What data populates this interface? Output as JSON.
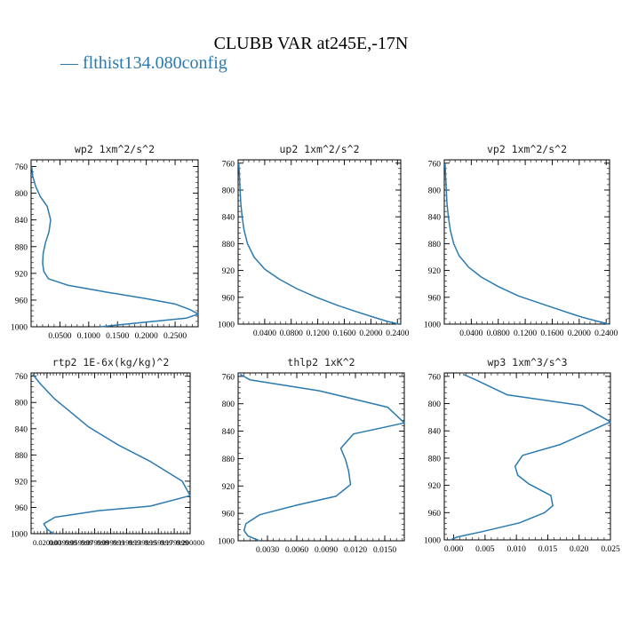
{
  "figure": {
    "title": "CLUBB VAR at245E,-17N",
    "legend_label": "— flthist134.080config",
    "line_color": "#2a7ab0"
  },
  "chart_data": [
    {
      "type": "line",
      "title": "wp2   1xm^2/s^2",
      "xlim": [
        0.0,
        0.29
      ],
      "ylim": [
        1000,
        750
      ],
      "xticks": [
        0.05,
        0.1,
        0.15,
        0.2,
        0.25
      ],
      "xtick_labels": [
        "0.0500",
        "0.1000",
        "0.1500",
        "0.2000",
        "0.2500"
      ],
      "yticks": [
        760,
        800,
        840,
        880,
        920,
        960,
        1000
      ],
      "ytick_labels": [
        "760",
        "800",
        "840",
        "880",
        "920",
        "960",
        "1000"
      ],
      "series": [
        {
          "x": [
            0.001,
            0.003,
            0.008,
            0.016,
            0.028,
            0.034,
            0.031,
            0.025,
            0.021,
            0.02,
            0.022,
            0.03,
            0.065,
            0.13,
            0.2,
            0.25,
            0.275,
            0.29,
            0.27,
            0.2,
            0.12
          ],
          "y": [
            760,
            775,
            790,
            805,
            820,
            840,
            858,
            874,
            890,
            905,
            917,
            928,
            938,
            948,
            958,
            966,
            974,
            981,
            987,
            993,
            1000
          ]
        }
      ]
    },
    {
      "type": "line",
      "title": "up2   1xm^2/s^2",
      "xlim": [
        0.0,
        0.245
      ],
      "ylim": [
        1000,
        755
      ],
      "xticks": [
        0.04,
        0.08,
        0.12,
        0.16,
        0.2,
        0.24
      ],
      "xtick_labels": [
        "0.0400",
        "0.0800",
        "0.1200",
        "0.1600",
        "0.2000",
        "0.2400"
      ],
      "yticks": [
        760,
        800,
        840,
        880,
        920,
        960,
        1000
      ],
      "ytick_labels": [
        "760",
        "800",
        "840",
        "880",
        "920",
        "960",
        "1000"
      ],
      "series": [
        {
          "x": [
            0.001,
            0.002,
            0.003,
            0.004,
            0.006,
            0.009,
            0.014,
            0.024,
            0.04,
            0.062,
            0.088,
            0.118,
            0.15,
            0.18,
            0.205,
            0.225,
            0.242
          ],
          "y": [
            760,
            780,
            800,
            820,
            840,
            860,
            880,
            900,
            918,
            933,
            947,
            960,
            972,
            982,
            990,
            996,
            1000
          ]
        }
      ]
    },
    {
      "type": "line",
      "title": "vp2   1xm^2/s^2",
      "xlim": [
        0.0,
        0.245
      ],
      "ylim": [
        1000,
        755
      ],
      "xticks": [
        0.04,
        0.08,
        0.12,
        0.16,
        0.2,
        0.24
      ],
      "xtick_labels": [
        "0.0400",
        "0.0800",
        "0.1200",
        "0.1600",
        "0.2000",
        "0.2400"
      ],
      "yticks": [
        760,
        800,
        840,
        880,
        920,
        960,
        1000
      ],
      "ytick_labels": [
        "760",
        "800",
        "840",
        "880",
        "920",
        "960",
        "1000"
      ],
      "series": [
        {
          "x": [
            0.001,
            0.002,
            0.003,
            0.004,
            0.006,
            0.009,
            0.014,
            0.022,
            0.036,
            0.055,
            0.08,
            0.11,
            0.145,
            0.178,
            0.205,
            0.228,
            0.244
          ],
          "y": [
            760,
            780,
            800,
            820,
            840,
            860,
            880,
            898,
            915,
            930,
            944,
            958,
            970,
            981,
            990,
            996,
            1000
          ]
        }
      ]
    },
    {
      "type": "line",
      "title": "rtp2   1E-6x(kg/kg)^2",
      "xlim": [
        0.0,
        0.2
      ],
      "ylim": [
        1000,
        755
      ],
      "xticks": [
        0.02,
        0.04,
        0.06,
        0.08,
        0.1,
        0.12,
        0.14,
        0.16,
        0.18,
        0.2
      ],
      "xtick_labels": [
        "0.020000",
        "0.039999",
        "0.059999",
        "0.079999",
        "0.099999",
        "0.119999",
        "0.139999",
        "0.159999",
        "0.179999",
        "0.200000"
      ],
      "yticks": [
        760,
        800,
        840,
        880,
        920,
        960,
        1000
      ],
      "ytick_labels": [
        "760",
        "800",
        "840",
        "880",
        "920",
        "960",
        "1000"
      ],
      "series": [
        {
          "x": [
            0.002,
            0.012,
            0.03,
            0.05,
            0.072,
            0.11,
            0.15,
            0.19,
            0.2,
            0.15,
            0.085,
            0.03,
            0.016,
            0.02,
            0.028
          ],
          "y": [
            757,
            772,
            795,
            815,
            837,
            865,
            890,
            920,
            942,
            958,
            965,
            975,
            985,
            993,
            1000
          ]
        }
      ]
    },
    {
      "type": "line",
      "title": "thlp2   1xK^2",
      "xlim": [
        0.0,
        0.017
      ],
      "ylim": [
        1000,
        755
      ],
      "xticks": [
        0.003,
        0.006,
        0.009,
        0.012,
        0.015
      ],
      "xtick_labels": [
        "0.0030",
        "0.0060",
        "0.0090",
        "0.0120",
        "0.0150"
      ],
      "yticks": [
        760,
        800,
        840,
        880,
        920,
        960,
        1000
      ],
      "ytick_labels": [
        "760",
        "800",
        "840",
        "880",
        "920",
        "960",
        "1000"
      ],
      "series": [
        {
          "x": [
            0.0002,
            0.0012,
            0.0083,
            0.0153,
            0.017,
            0.0118,
            0.0105,
            0.011,
            0.0113,
            0.0115,
            0.01,
            0.006,
            0.0022,
            0.0008,
            0.0006,
            0.001,
            0.0022
          ],
          "y": [
            757,
            765,
            781,
            805,
            828,
            844,
            865,
            882,
            898,
            918,
            935,
            948,
            962,
            975,
            985,
            993,
            1000
          ]
        }
      ]
    },
    {
      "type": "line",
      "title": "wp3   1xm^3/s^3",
      "xlim": [
        -0.0015,
        0.025
      ],
      "ylim": [
        1000,
        755
      ],
      "xticks": [
        0.0,
        0.005,
        0.01,
        0.015,
        0.02,
        0.025
      ],
      "xtick_labels": [
        "0.000",
        "0.005",
        "0.010",
        "0.015",
        "0.020",
        "0.025"
      ],
      "yticks": [
        760,
        800,
        840,
        880,
        920,
        960,
        1000
      ],
      "ytick_labels": [
        "760",
        "800",
        "840",
        "880",
        "920",
        "960",
        "1000"
      ],
      "series": [
        {
          "x": [
            0.0015,
            0.0035,
            0.0085,
            0.0205,
            0.025,
            0.017,
            0.011,
            0.0098,
            0.0102,
            0.012,
            0.0155,
            0.0158,
            0.0145,
            0.0105,
            0.0045,
            0.0005,
            -0.0005
          ],
          "y": [
            757,
            765,
            787,
            803,
            827,
            860,
            876,
            892,
            905,
            918,
            935,
            950,
            960,
            975,
            988,
            996,
            1000
          ]
        }
      ]
    }
  ]
}
